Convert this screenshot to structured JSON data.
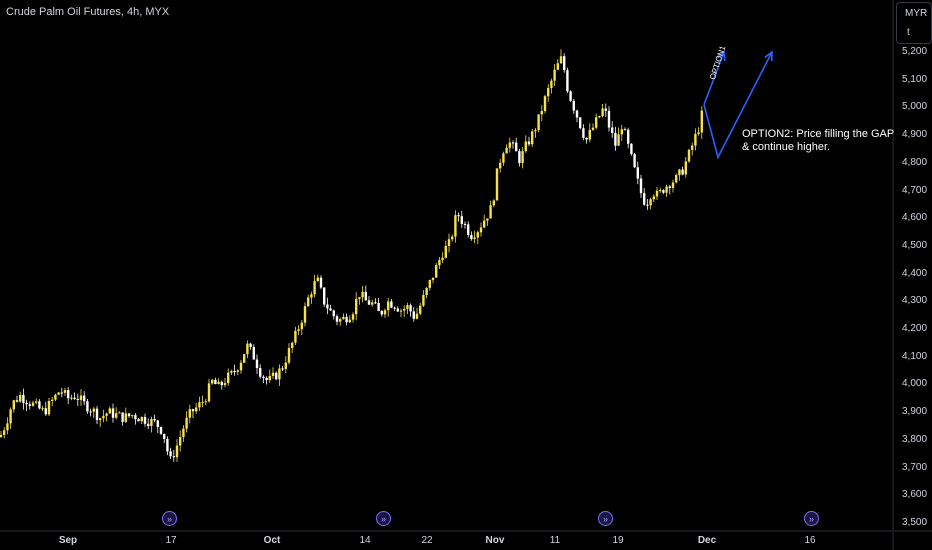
{
  "header": {
    "title": "Crude Palm Oil Futures, 4h, MYX"
  },
  "price_scale": {
    "currency": "MYR",
    "unit": "t"
  },
  "annotations": {
    "option1": "OPTION1",
    "option2_line1": "OPTION2: Price filling the GAP",
    "option2_line2": "& continue higher."
  },
  "event_icon": "calendar-event-icon",
  "colors": {
    "up": "#f5e14a",
    "down": "#ffffff",
    "arrow": "#2962ff"
  },
  "chart_data": {
    "type": "candlestick",
    "title": "Crude Palm Oil Futures, 4h, MYX",
    "y_ticks": [
      "5,200",
      "5,100",
      "5,000",
      "4,900",
      "4,800",
      "4,700",
      "4,600",
      "4,500",
      "4,400",
      "4,300",
      "4,200",
      "4,100",
      "4,000",
      "3,900",
      "3,800",
      "3,700",
      "3,600",
      "3,500"
    ],
    "ylim": [
      3500,
      5250
    ],
    "x_ticks": [
      {
        "label": "Sep",
        "major": true
      },
      {
        "label": "17",
        "major": false
      },
      {
        "label": "Oct",
        "major": true
      },
      {
        "label": "14",
        "major": false
      },
      {
        "label": "22",
        "major": false
      },
      {
        "label": "Nov",
        "major": true
      },
      {
        "label": "11",
        "major": false
      },
      {
        "label": "19",
        "major": false
      },
      {
        "label": "Dec",
        "major": true
      },
      {
        "label": "16",
        "major": false
      }
    ],
    "grid": false,
    "price_path": [
      {
        "x": 0,
        "c": 3810
      },
      {
        "x": 6,
        "c": 3860
      },
      {
        "x": 12,
        "c": 3930
      },
      {
        "x": 20,
        "c": 3960
      },
      {
        "x": 28,
        "c": 3940
      },
      {
        "x": 36,
        "c": 3920
      },
      {
        "x": 44,
        "c": 3900
      },
      {
        "x": 52,
        "c": 3940
      },
      {
        "x": 60,
        "c": 3980
      },
      {
        "x": 68,
        "c": 3950
      },
      {
        "x": 76,
        "c": 3960
      },
      {
        "x": 84,
        "c": 3930
      },
      {
        "x": 92,
        "c": 3910
      },
      {
        "x": 100,
        "c": 3880
      },
      {
        "x": 108,
        "c": 3900
      },
      {
        "x": 116,
        "c": 3890
      },
      {
        "x": 124,
        "c": 3880
      },
      {
        "x": 132,
        "c": 3890
      },
      {
        "x": 140,
        "c": 3880
      },
      {
        "x": 148,
        "c": 3870
      },
      {
        "x": 156,
        "c": 3860
      },
      {
        "x": 163,
        "c": 3830
      },
      {
        "x": 170,
        "c": 3720
      },
      {
        "x": 177,
        "c": 3780
      },
      {
        "x": 184,
        "c": 3850
      },
      {
        "x": 191,
        "c": 3900
      },
      {
        "x": 198,
        "c": 3920
      },
      {
        "x": 205,
        "c": 3950
      },
      {
        "x": 212,
        "c": 4010
      },
      {
        "x": 219,
        "c": 3990
      },
      {
        "x": 226,
        "c": 4020
      },
      {
        "x": 233,
        "c": 4040
      },
      {
        "x": 240,
        "c": 4080
      },
      {
        "x": 247,
        "c": 4140
      },
      {
        "x": 254,
        "c": 4100
      },
      {
        "x": 261,
        "c": 4040
      },
      {
        "x": 268,
        "c": 4010
      },
      {
        "x": 275,
        "c": 4030
      },
      {
        "x": 282,
        "c": 4060
      },
      {
        "x": 289,
        "c": 4120
      },
      {
        "x": 296,
        "c": 4180
      },
      {
        "x": 303,
        "c": 4250
      },
      {
        "x": 310,
        "c": 4330
      },
      {
        "x": 317,
        "c": 4380
      },
      {
        "x": 324,
        "c": 4300
      },
      {
        "x": 331,
        "c": 4260
      },
      {
        "x": 338,
        "c": 4230
      },
      {
        "x": 345,
        "c": 4240
      },
      {
        "x": 352,
        "c": 4260
      },
      {
        "x": 359,
        "c": 4330
      },
      {
        "x": 366,
        "c": 4300
      },
      {
        "x": 373,
        "c": 4290
      },
      {
        "x": 380,
        "c": 4250
      },
      {
        "x": 387,
        "c": 4300
      },
      {
        "x": 394,
        "c": 4290
      },
      {
        "x": 401,
        "c": 4270
      },
      {
        "x": 408,
        "c": 4280
      },
      {
        "x": 415,
        "c": 4240
      },
      {
        "x": 422,
        "c": 4300
      },
      {
        "x": 429,
        "c": 4360
      },
      {
        "x": 436,
        "c": 4420
      },
      {
        "x": 443,
        "c": 4480
      },
      {
        "x": 450,
        "c": 4510
      },
      {
        "x": 457,
        "c": 4620
      },
      {
        "x": 464,
        "c": 4580
      },
      {
        "x": 471,
        "c": 4540
      },
      {
        "x": 478,
        "c": 4560
      },
      {
        "x": 485,
        "c": 4600
      },
      {
        "x": 492,
        "c": 4640
      },
      {
        "x": 497,
        "c": 4760
      },
      {
        "x": 502,
        "c": 4840
      },
      {
        "x": 508,
        "c": 4880
      },
      {
        "x": 514,
        "c": 4850
      },
      {
        "x": 520,
        "c": 4810
      },
      {
        "x": 526,
        "c": 4860
      },
      {
        "x": 532,
        "c": 4900
      },
      {
        "x": 538,
        "c": 4950
      },
      {
        "x": 544,
        "c": 5020
      },
      {
        "x": 550,
        "c": 5080
      },
      {
        "x": 556,
        "c": 5140
      },
      {
        "x": 562,
        "c": 5180
      },
      {
        "x": 568,
        "c": 5060
      },
      {
        "x": 574,
        "c": 5000
      },
      {
        "x": 580,
        "c": 4940
      },
      {
        "x": 586,
        "c": 4880
      },
      {
        "x": 592,
        "c": 4920
      },
      {
        "x": 598,
        "c": 4960
      },
      {
        "x": 604,
        "c": 5000
      },
      {
        "x": 610,
        "c": 4920
      },
      {
        "x": 616,
        "c": 4860
      },
      {
        "x": 622,
        "c": 4940
      },
      {
        "x": 628,
        "c": 4860
      },
      {
        "x": 634,
        "c": 4780
      },
      {
        "x": 640,
        "c": 4700
      },
      {
        "x": 646,
        "c": 4650
      },
      {
        "x": 652,
        "c": 4700
      },
      {
        "x": 658,
        "c": 4680
      },
      {
        "x": 664,
        "c": 4710
      },
      {
        "x": 670,
        "c": 4730
      },
      {
        "x": 676,
        "c": 4740
      },
      {
        "x": 682,
        "c": 4770
      },
      {
        "x": 688,
        "c": 4820
      },
      {
        "x": 694,
        "c": 4880
      },
      {
        "x": 700,
        "c": 4940
      },
      {
        "x": 704,
        "c": 5010
      }
    ],
    "projections": [
      {
        "name": "OPTION1",
        "points": [
          [
            704,
            5010
          ],
          [
            724,
            5200
          ]
        ]
      },
      {
        "name": "OPTION2",
        "points": [
          [
            704,
            5010
          ],
          [
            718,
            4820
          ],
          [
            772,
            5200
          ]
        ]
      }
    ]
  }
}
